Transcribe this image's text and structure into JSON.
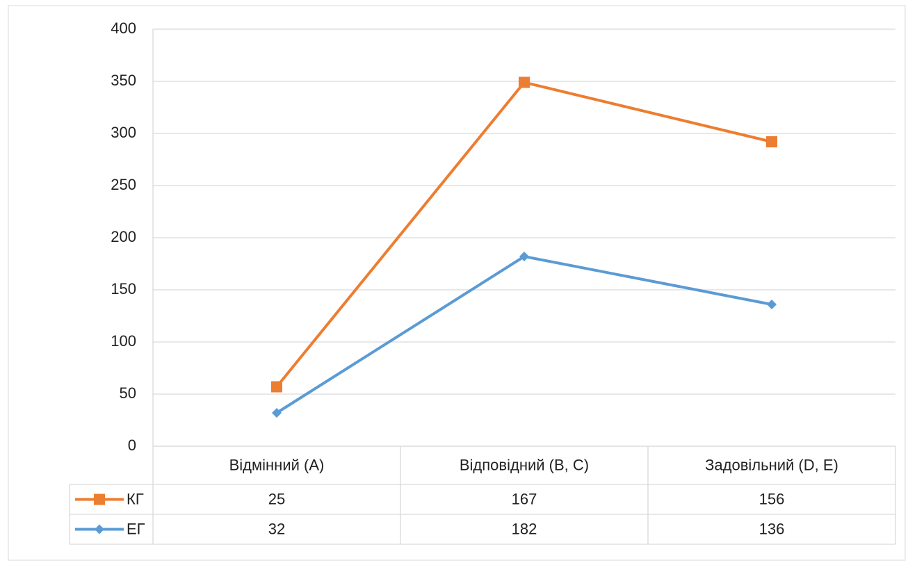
{
  "chart_data": {
    "type": "line",
    "stacked": true,
    "categories": [
      "Відмінний (А)",
      "Відповідний (В, С)",
      "Задовільний (D, E)"
    ],
    "series": [
      {
        "name": "КГ",
        "color": "#ed7d31",
        "marker": "square",
        "values": [
          25,
          167,
          156
        ]
      },
      {
        "name": "ЕГ",
        "color": "#5b9bd5",
        "marker": "diamond",
        "values": [
          32,
          182,
          136
        ]
      }
    ],
    "ylim": [
      0,
      400
    ],
    "yticks": [
      0,
      50,
      100,
      150,
      200,
      250,
      300,
      350,
      400
    ],
    "grid": true,
    "data_table": true
  }
}
